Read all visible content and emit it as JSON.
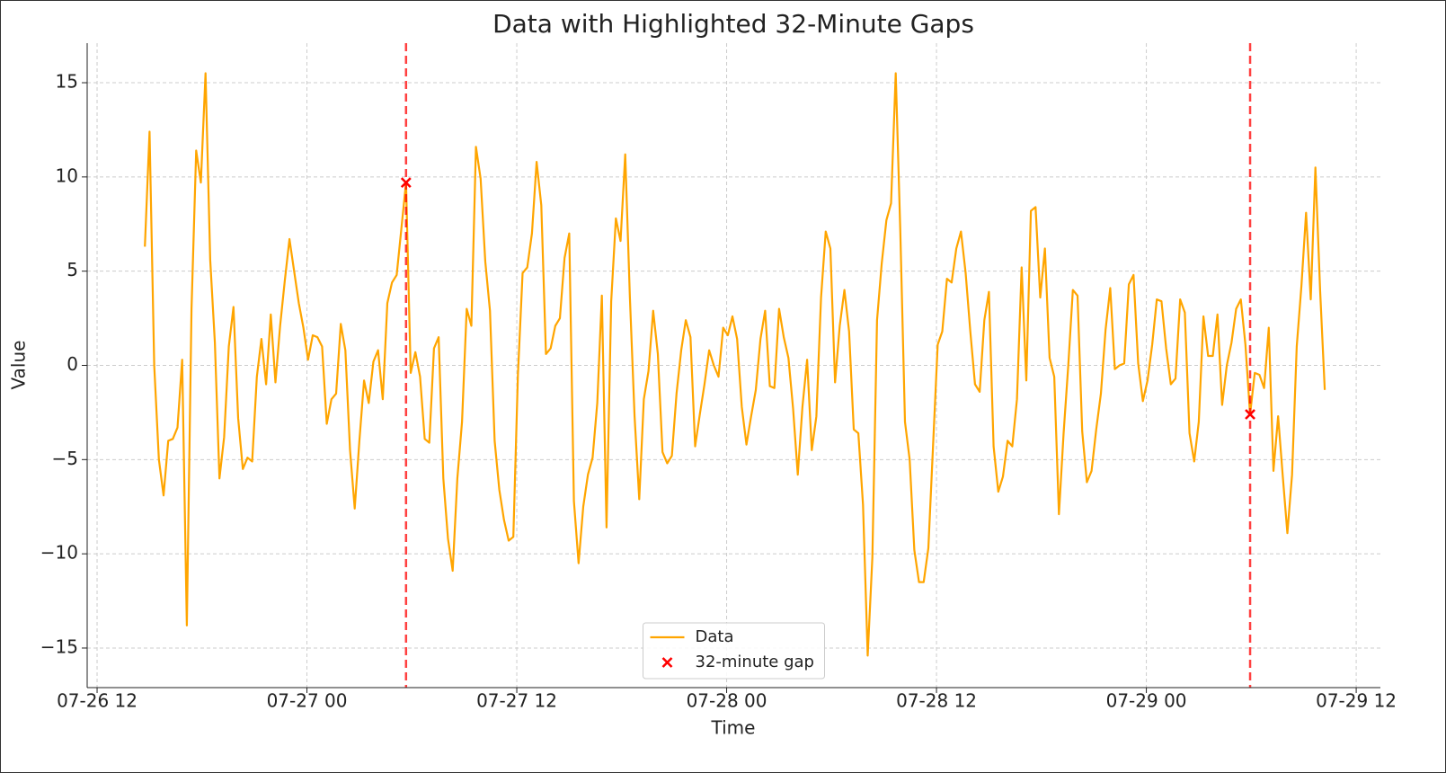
{
  "chart_data": {
    "type": "line",
    "title": "Data with Highlighted 32-Minute Gaps",
    "xlabel": "Time",
    "ylabel": "Value",
    "x": [
      884,
      900,
      916,
      932,
      948,
      964,
      980,
      996,
      1012,
      1028,
      1044,
      1060,
      1076,
      1092,
      1108,
      1124,
      1140,
      1156,
      1172,
      1188,
      1204,
      1220,
      1236,
      1252,
      1268,
      1284,
      1300,
      1316,
      1332,
      1348,
      1364,
      1380,
      1396,
      1412,
      1428,
      1444,
      1460,
      1476,
      1492,
      1508,
      1524,
      1540,
      1556,
      1572,
      1588,
      1604,
      1620,
      1636,
      1652,
      1668,
      1684,
      1700,
      1716,
      1732,
      1748,
      1780,
      1796,
      1812,
      1828,
      1844,
      1860,
      1876,
      1892,
      1908,
      1924,
      1940,
      1956,
      1972,
      1988,
      2004,
      2020,
      2036,
      2052,
      2068,
      2084,
      2100,
      2116,
      2132,
      2148,
      2164,
      2180,
      2196,
      2212,
      2228,
      2244,
      2260,
      2276,
      2292,
      2308,
      2324,
      2340,
      2356,
      2372,
      2388,
      2404,
      2420,
      2436,
      2452,
      2468,
      2484,
      2500,
      2516,
      2532,
      2548,
      2564,
      2580,
      2596,
      2612,
      2628,
      2644,
      2660,
      2676,
      2692,
      2708,
      2724,
      2740,
      2756,
      2772,
      2788,
      2804,
      2820,
      2836,
      2852,
      2868,
      2884,
      2900,
      2916,
      2932,
      2948,
      2964,
      2980,
      2996,
      3012,
      3028,
      3044,
      3060,
      3076,
      3092,
      3108,
      3124,
      3140,
      3156,
      3172,
      3188,
      3204,
      3220,
      3236,
      3252,
      3268,
      3284,
      3300,
      3316,
      3332,
      3348,
      3364,
      3380,
      3396,
      3412,
      3428,
      3444,
      3460,
      3476,
      3492,
      3508,
      3524,
      3540,
      3556,
      3572,
      3588,
      3604,
      3620,
      3636,
      3652,
      3668,
      3684,
      3700,
      3716,
      3732,
      3748,
      3764,
      3780,
      3796,
      3812,
      3828,
      3844,
      3860,
      3876,
      3892,
      3908,
      3924,
      3940,
      3956,
      3972,
      3988,
      4004,
      4020,
      4036,
      4052,
      4068,
      4084,
      4100,
      4116,
      4132,
      4148,
      4164,
      4180,
      4196,
      4212,
      4228,
      4244,
      4260,
      4276,
      4292,
      4308,
      4324,
      4340,
      4356,
      4372,
      4388,
      4404,
      4420,
      4436,
      4452,
      4468,
      4484,
      4500,
      4516,
      4532,
      4548,
      4564,
      4580,
      4596,
      4612,
      4628,
      4644,
      4660,
      4676,
      4692,
      4708,
      4724,
      4740,
      4756,
      4772,
      4788,
      4804,
      4820,
      4836,
      4852,
      4868,
      4884,
      4900,
      4916,
      4932
    ],
    "series": [
      {
        "name": "Data",
        "color": "#ffa500",
        "values": [
          6.3,
          12.4,
          0,
          -5,
          -6.9,
          -4,
          -3.9,
          -3.3,
          0.3,
          -13.8,
          3,
          11.4,
          9.7,
          15.5,
          5.6,
          1.2,
          -6,
          -3.8,
          1,
          3.1,
          -2.8,
          -5.5,
          -4.9,
          -5.1,
          -0.6,
          1.4,
          -1,
          2.7,
          -0.9,
          2.1,
          4.5,
          6.7,
          5,
          3.3,
          2,
          0.3,
          1.6,
          1.5,
          1,
          -3.1,
          -1.8,
          -1.5,
          2.2,
          0.8,
          -4.5,
          -7.6,
          -4,
          -0.8,
          -2,
          0.2,
          0.8,
          -1.8,
          3.3,
          4.4,
          4.8,
          9.7,
          -0.4,
          0.7,
          -0.6,
          -3.9,
          -4.1,
          0.9,
          1.5,
          -6,
          -9.2,
          -10.9,
          -6,
          -3,
          3,
          2.1,
          11.6,
          9.9,
          5.5,
          2.9,
          -4,
          -6.6,
          -8.2,
          -9.3,
          -9.1,
          -0.5,
          4.9,
          5.2,
          7,
          10.8,
          8.5,
          0.6,
          0.9,
          2.1,
          2.5,
          5.7,
          7,
          -7.2,
          -10.5,
          -7.5,
          -5.8,
          -4.9,
          -2,
          3.7,
          -8.6,
          3.4,
          7.8,
          6.6,
          11.2,
          3.6,
          -2.7,
          -7.1,
          -1.8,
          -0.3,
          2.9,
          0.6,
          -4.6,
          -5.2,
          -4.8,
          -1.5,
          0.8,
          2.4,
          1.5,
          -4.3,
          -2.6,
          -1,
          0.8,
          0,
          -0.6,
          2,
          1.6,
          2.6,
          1.4,
          -2.2,
          -4.2,
          -2.7,
          -1.3,
          1.4,
          2.9,
          -1.1,
          -1.2,
          3,
          1.5,
          0.4,
          -2.3,
          -5.8,
          -2.2,
          0.3,
          -4.5,
          -2.7,
          3.6,
          7.1,
          6.2,
          -0.9,
          2.1,
          4,
          1.8,
          -3.4,
          -3.6,
          -7.4,
          -15.4,
          -10.2,
          2.4,
          5.4,
          7.7,
          8.6,
          15.5,
          7.1,
          -3,
          -5,
          -9.8,
          -11.5,
          -11.5,
          -9.7,
          -4.3,
          1.1,
          1.8,
          4.6,
          4.4,
          6.2,
          7.1,
          4.9,
          1.8,
          -1,
          -1.4,
          2.4,
          3.9,
          -4.3,
          -6.7,
          -5.9,
          -4,
          -4.3,
          -1.8,
          5.2,
          -0.8,
          8.2,
          8.4,
          3.6,
          6.2,
          0.4,
          -0.6,
          -7.9,
          -3.6,
          0,
          4,
          3.7,
          -3.5,
          -6.2,
          -5.6,
          -3.4,
          -1.5,
          1.9,
          4.1,
          -0.2,
          0,
          0.1,
          4.3,
          4.8,
          0.1,
          -1.9,
          -0.8,
          1.1,
          3.5,
          3.4,
          0.9,
          -1,
          -0.7,
          3.5,
          2.8,
          -3.6,
          -5.1,
          -3,
          2.6,
          0.5,
          0.5,
          2.7,
          -2.1,
          0,
          1.2,
          3,
          3.5,
          1.1,
          -2.6,
          -0.4,
          -0.5,
          -1.2,
          2,
          -5.6,
          -2.7,
          -5.9,
          -8.9,
          -5.8,
          1,
          4.2,
          8.1,
          3.5,
          10.5,
          4,
          -1.3
        ]
      },
      {
        "name": "32-minute gap",
        "type": "scatter",
        "marker": "x",
        "color": "#ff0000",
        "x": [
          1780,
          4676
        ],
        "values": [
          9.7,
          -2.6
        ]
      }
    ],
    "xlim": [
      686,
      5123
    ],
    "ylim": [
      -17.1,
      17.1
    ],
    "xticks": [
      {
        "value": 720,
        "label": "07-26 12"
      },
      {
        "value": 1440,
        "label": "07-27 00"
      },
      {
        "value": 2160,
        "label": "07-27 12"
      },
      {
        "value": 2880,
        "label": "07-28 00"
      },
      {
        "value": 3600,
        "label": "07-28 12"
      },
      {
        "value": 4320,
        "label": "07-29 00"
      },
      {
        "value": 5040,
        "label": "07-29 12"
      }
    ],
    "yticks": [
      {
        "value": -15,
        "label": "−15"
      },
      {
        "value": -10,
        "label": "−10"
      },
      {
        "value": -5,
        "label": "−5"
      },
      0,
      5,
      10,
      15
    ],
    "grid": true,
    "legend": "lower center"
  }
}
